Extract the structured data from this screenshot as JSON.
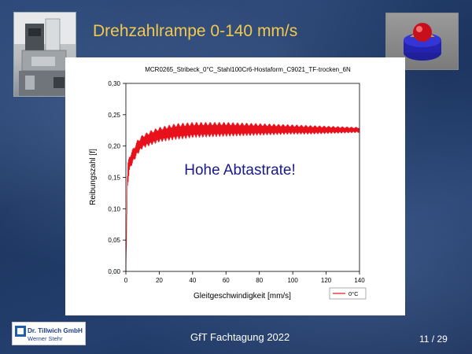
{
  "slide": {
    "title": "Drehzahlrampe 0-140 mm/s",
    "footer_text": "GfT Fachtagung 2022",
    "page_number": "11 / 29",
    "logo_company": "Dr. Tillwich GmbH",
    "logo_subtitle": "Werner Stehr"
  },
  "chart_data": {
    "type": "line",
    "title": "MCR0265_Stribeck_0°C_Stahl100Cr6-Hostaform_C9021_TF-trocken_6N",
    "xlabel": "Gleitgeschwindigkeit [mm/s]",
    "ylabel": "Reibungszahl [f]",
    "xlim": [
      0,
      140
    ],
    "ylim": [
      0,
      0.3
    ],
    "x_ticks": [
      "0",
      "20",
      "40",
      "60",
      "80",
      "100",
      "120",
      "140"
    ],
    "y_ticks": [
      "0,00",
      "0,05",
      "0,10",
      "0,15",
      "0,20",
      "0,25",
      "0,30"
    ],
    "grid": false,
    "legend_position": "bottom-right",
    "annotation": "Hohe Abtastrate!",
    "series": [
      {
        "name": "0°C",
        "color": "#e8101a",
        "envelope_x": [
          0,
          0.5,
          1,
          2,
          3,
          5,
          7,
          10,
          15,
          20,
          25,
          30,
          35,
          40,
          50,
          60,
          70,
          80,
          90,
          100,
          110,
          120,
          130,
          140
        ],
        "envelope_min": [
          0,
          0.05,
          0.13,
          0.155,
          0.165,
          0.175,
          0.185,
          0.195,
          0.2,
          0.205,
          0.207,
          0.209,
          0.21,
          0.212,
          0.213,
          0.214,
          0.215,
          0.216,
          0.217,
          0.218,
          0.218,
          0.219,
          0.22,
          0.221
        ],
        "envelope_max": [
          0,
          0.09,
          0.17,
          0.185,
          0.19,
          0.2,
          0.21,
          0.218,
          0.225,
          0.23,
          0.233,
          0.236,
          0.237,
          0.238,
          0.238,
          0.238,
          0.237,
          0.236,
          0.235,
          0.234,
          0.233,
          0.232,
          0.231,
          0.23
        ]
      }
    ]
  }
}
